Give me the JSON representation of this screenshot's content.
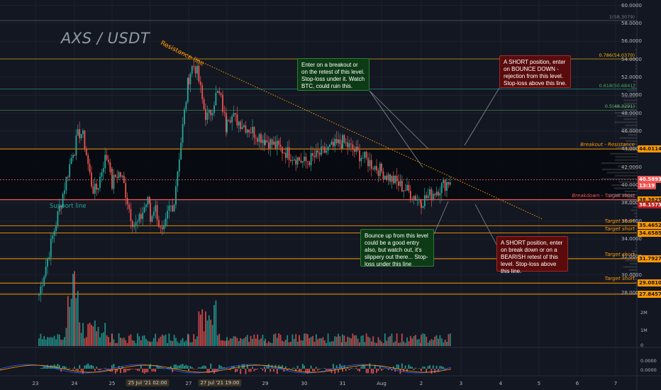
{
  "chart_title": "AXS / USDT",
  "annotations": {
    "resistance_line": "Resistance line",
    "support_line": "Support line",
    "note_breakout": "Enter on a breakout or on the retest of this level. Stop-loss under it. Watch BTC, could ruin this.",
    "note_short_bounce": "A SHORT position, enter on BOUNCE DOWN - rejection from this level. Stop-loss above this line.",
    "note_bounce_up": "Bounce up from this level could be a good entry also, but watch out, it's slippery out there... Stop-loss under this line",
    "note_short_breakdown": "A SHORT position, enter on break down or on a BEARISH retest of this level. Stop-loss above this line."
  },
  "y_axis": {
    "ticks": [
      "60.0000",
      "58.0000",
      "56.0000",
      "54.0000",
      "52.0000",
      "50.0000",
      "48.0000",
      "46.0000",
      "44.0000",
      "42.0000",
      "40.0000",
      "38.0000",
      "36.0000",
      "34.0000",
      "32.0000",
      "30.0000",
      "28.0000"
    ]
  },
  "price_tags": [
    {
      "text": "44.0114",
      "bg": "#ff9800",
      "fg": "#131722"
    },
    {
      "text": "40.5893",
      "bg": "#ef5350",
      "fg": "#ffffff"
    },
    {
      "text": "13:19",
      "bg": "#ef5350",
      "fg": "#ffffff"
    },
    {
      "text": "38.3625",
      "bg": "#ff9800",
      "fg": "#131722"
    },
    {
      "text": "38.1573",
      "bg": "#b71c1c",
      "fg": "#ffffff"
    },
    {
      "text": "35.4652",
      "bg": "#ff9800",
      "fg": "#131722"
    },
    {
      "text": "34.6585",
      "bg": "#ff9800",
      "fg": "#131722"
    },
    {
      "text": "31.7927",
      "bg": "#ff9800",
      "fg": "#131722"
    },
    {
      "text": "29.0810",
      "bg": "#ff9800",
      "fg": "#131722"
    },
    {
      "text": "27.8457",
      "bg": "#ff9800",
      "fg": "#131722"
    }
  ],
  "level_labels": [
    {
      "text": "Breakout - Resistance",
      "color": "#ff9800"
    },
    {
      "text": "Breakdown - Target short",
      "color": "#ef5350"
    },
    {
      "text": "Target short",
      "color": "#ff9800"
    },
    {
      "text": "Target short",
      "color": "#ff9800"
    },
    {
      "text": "Target short",
      "color": "#ff9800"
    },
    {
      "text": "Target short",
      "color": "#ff9800"
    }
  ],
  "fib_labels": [
    {
      "text": "1(58.3079)",
      "color": "#787b86"
    },
    {
      "text": "0.786(54.0370)",
      "color": "#f7b500"
    },
    {
      "text": "0.618(50.6841)",
      "color": "#4caf50"
    },
    {
      "text": "0.5(48.3291)",
      "color": "#66bb6a"
    },
    {
      "text": "0(38.3904)",
      "color": "#787b86"
    }
  ],
  "volume_axis": [
    "2M",
    "1M",
    "0"
  ],
  "oscillator_axis": [
    "0.0000",
    "0.0000"
  ],
  "x_axis": [
    {
      "text": "23",
      "highlight": false
    },
    {
      "text": "24",
      "highlight": false
    },
    {
      "text": "25",
      "highlight": false
    },
    {
      "text": "25 Jul '21  02:00",
      "highlight": true
    },
    {
      "text": "27",
      "highlight": false
    },
    {
      "text": "27 Jul '21  19:00",
      "highlight": true
    },
    {
      "text": "29",
      "highlight": false
    },
    {
      "text": "30",
      "highlight": false
    },
    {
      "text": "31",
      "highlight": false
    },
    {
      "text": "Aug",
      "highlight": false
    },
    {
      "text": "2",
      "highlight": false
    },
    {
      "text": "3",
      "highlight": false
    },
    {
      "text": "4",
      "highlight": false
    },
    {
      "text": "5",
      "highlight": false
    },
    {
      "text": "6",
      "highlight": false
    },
    {
      "text": "7",
      "highlight": false
    }
  ],
  "colors": {
    "background": "#131722",
    "up": "#26a69a",
    "down": "#ef5350",
    "resistance": "#ff9800",
    "breakdown": "#ef5350",
    "note_green": "#0d3b16",
    "note_red": "#5a0c0c"
  },
  "chart_data": {
    "type": "candlestick",
    "title": "AXS / USDT",
    "ylim": [
      27,
      61
    ],
    "levels": {
      "breakout_resistance": 44.0114,
      "breakdown_target_short": 38.3625,
      "target_shorts": [
        35.4652,
        34.6585,
        31.7927,
        29.081,
        27.8457
      ],
      "last_price": 40.5893,
      "fib": {
        "1": 58.3079,
        "0.786": 54.037,
        "0.618": 50.6841,
        "0.5": 48.3291,
        "0": 38.3904
      }
    },
    "key_points": [
      {
        "x": "23",
        "y": 27.8
      },
      {
        "x": "24",
        "y": 44.5
      },
      {
        "x": "25",
        "y": 40.0
      },
      {
        "x": "26",
        "y": 36.0
      },
      {
        "x": "27",
        "y": 52.0
      },
      {
        "x": "28",
        "y": 48.0
      },
      {
        "x": "29",
        "y": 45.0
      },
      {
        "x": "30",
        "y": 42.5
      },
      {
        "x": "31",
        "y": 44.8
      },
      {
        "x": "Aug 1",
        "y": 41.5
      },
      {
        "x": "Aug 2",
        "y": 38.2
      },
      {
        "x": "Aug 2 end",
        "y": 40.6
      }
    ]
  }
}
